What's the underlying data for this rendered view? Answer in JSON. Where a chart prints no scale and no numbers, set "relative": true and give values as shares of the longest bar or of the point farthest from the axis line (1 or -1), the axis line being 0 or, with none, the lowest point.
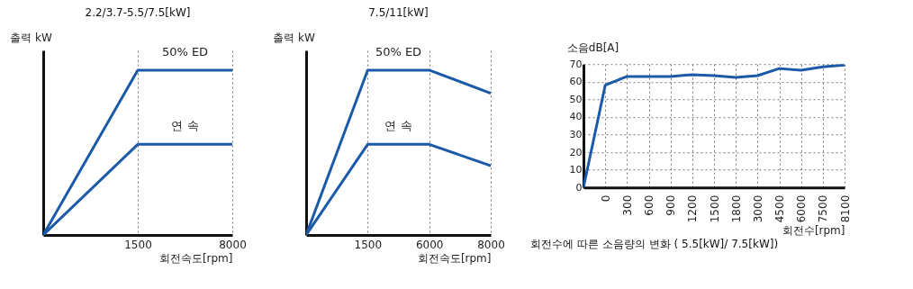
{
  "chart_data": [
    {
      "type": "line",
      "title": "2.2/3.7-5.5/7.5[kW]",
      "xlabel": "회전속도[rpm]",
      "ylabel": "출력 kW",
      "relative": true,
      "grid": "x",
      "categories": [
        null,
        "1500",
        "8000"
      ],
      "series": [
        {
          "name": "50% ED",
          "color": "#1a5aa8",
          "values": [
            0,
            1,
            1
          ]
        },
        {
          "name": "연 속",
          "color": "#1a5aa8",
          "values": [
            0,
            0.55,
            0.55
          ]
        }
      ]
    },
    {
      "type": "line",
      "title": "7.5/11[kW]",
      "xlabel": "회전속도[rpm]",
      "ylabel": "출력 kW",
      "relative": true,
      "grid": "x",
      "categories": [
        null,
        "1500",
        "6000",
        "8000"
      ],
      "series": [
        {
          "name": "50% ED",
          "color": "#1a5aa8",
          "values": [
            0,
            1,
            1,
            0.86
          ]
        },
        {
          "name": "연 속",
          "color": "#1a5aa8",
          "values": [
            0,
            0.55,
            0.55,
            0.42
          ]
        }
      ]
    },
    {
      "type": "line",
      "title": "회전수에 따른 소음량의 변화 ( 5.5[kW]/ 7.5[kW])",
      "xlabel": "회전수[rpm]",
      "ylabel": "소음dB[A]",
      "grid": true,
      "ylim": [
        0,
        70
      ],
      "yticks": [
        0,
        10,
        20,
        30,
        40,
        50,
        60,
        70
      ],
      "categories": [
        null,
        "0",
        "300",
        "600",
        "900",
        "1200",
        "1500",
        "1800",
        "3000",
        "4500",
        "6000",
        "7500",
        "8100"
      ],
      "series": [
        {
          "color": "#1a5aa8",
          "values": [
            0,
            58,
            63,
            63,
            63,
            64,
            63.5,
            62.5,
            63.5,
            67.5,
            66.5,
            68.5,
            69.5
          ]
        }
      ]
    }
  ]
}
